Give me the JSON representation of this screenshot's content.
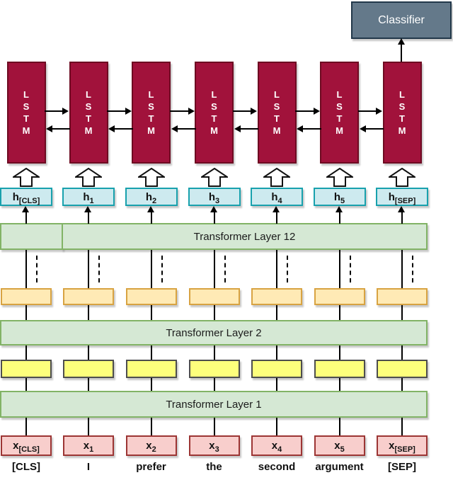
{
  "classifier": {
    "label": "Classifier"
  },
  "lstm_row": {
    "count": 7,
    "letters": [
      "L",
      "S",
      "T",
      "M"
    ]
  },
  "hidden_states": [
    {
      "base": "h",
      "sub": "[CLS]"
    },
    {
      "base": "h",
      "sub": "1"
    },
    {
      "base": "h",
      "sub": "2"
    },
    {
      "base": "h",
      "sub": "3"
    },
    {
      "base": "h",
      "sub": "4"
    },
    {
      "base": "h",
      "sub": "5"
    },
    {
      "base": "h",
      "sub": "[SEP]"
    }
  ],
  "transformer_layers": [
    {
      "label": "Transformer Layer 12"
    },
    {
      "label": "Transformer Layer 2"
    },
    {
      "label": "Transformer Layer 1"
    }
  ],
  "embeddings": [
    {
      "base": "x",
      "sub": "[CLS]"
    },
    {
      "base": "x",
      "sub": "1"
    },
    {
      "base": "x",
      "sub": "2"
    },
    {
      "base": "x",
      "sub": "3"
    },
    {
      "base": "x",
      "sub": "4"
    },
    {
      "base": "x",
      "sub": "5"
    },
    {
      "base": "x",
      "sub": "[SEP]"
    }
  ],
  "tokens": [
    "[CLS]",
    "I",
    "prefer",
    "the",
    "second",
    "argument",
    "[SEP]"
  ],
  "colors": {
    "classifier_fill": "#64798a",
    "classifier_border": "#22384a",
    "lstm_fill": "#a1123b",
    "lstm_border": "#6e0b22",
    "hidden_fill": "#cdeaef",
    "hidden_border": "#18a1ad",
    "layer_fill": "#d5e8d4",
    "layer_border": "#82b366",
    "mid_fill": "#ffeab5",
    "mid_border": "#d8a342",
    "lower_fill": "#fdff7c",
    "lower_border": "#4d4d4d",
    "embed_fill": "#f8cecc",
    "embed_border": "#9c3534"
  }
}
